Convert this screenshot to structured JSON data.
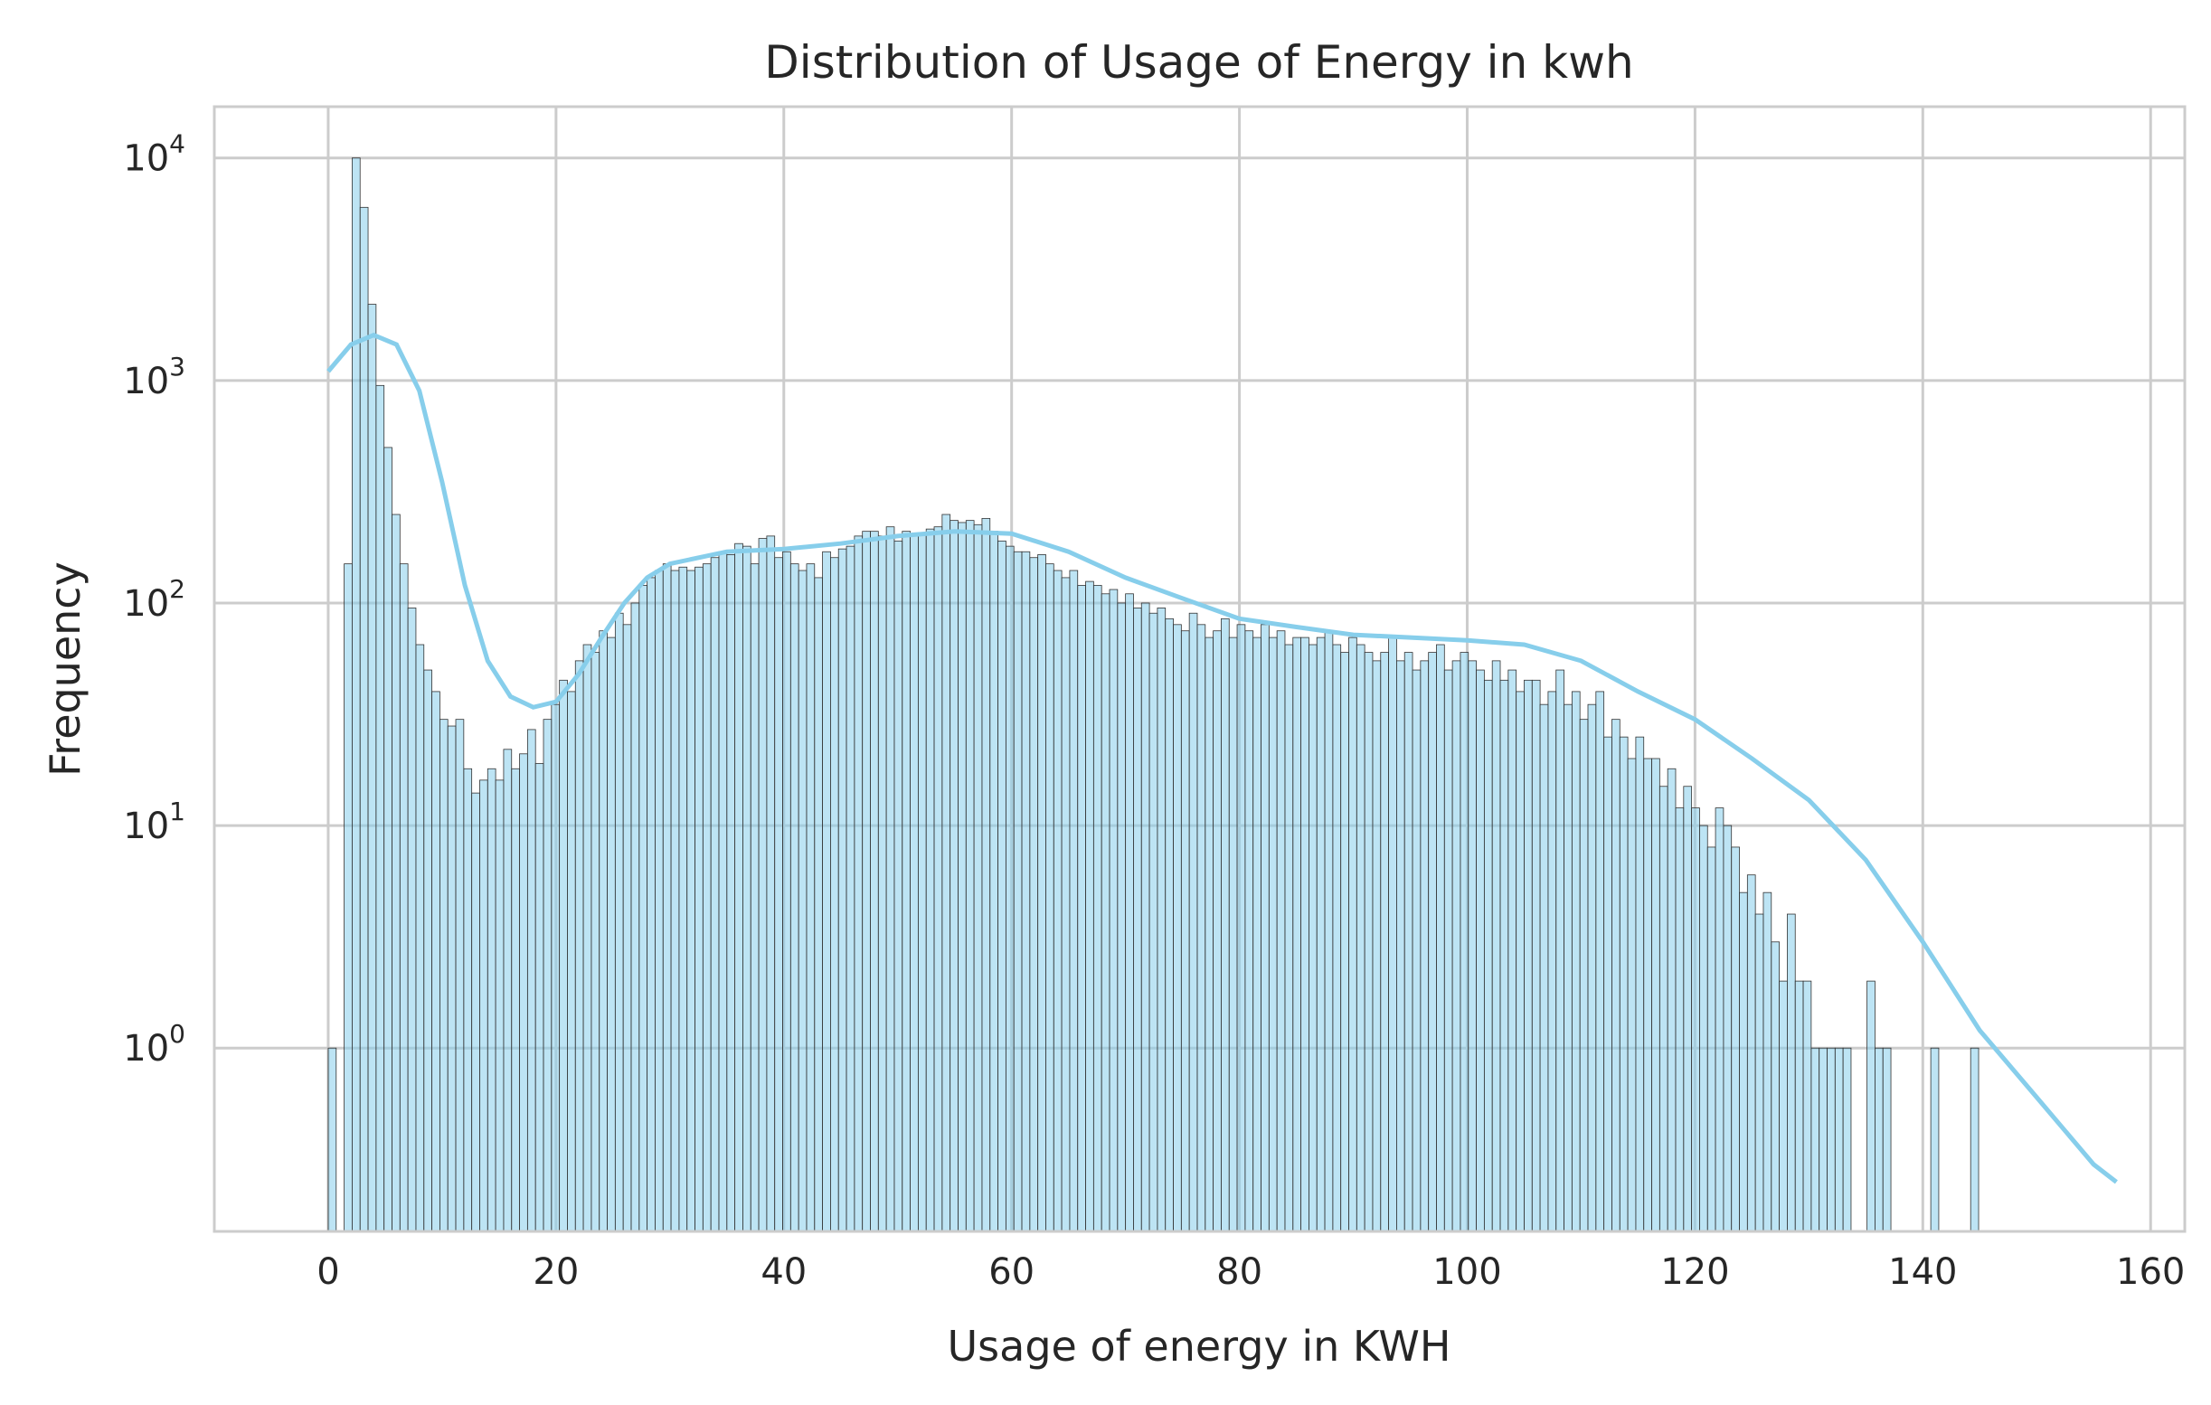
{
  "chart_data": {
    "type": "bar",
    "title": "Distribution of Usage of Energy in kwh",
    "xlabel": "Usage of energy in KWH",
    "ylabel": "Frequency",
    "y_scale": "log",
    "grid": true,
    "legend": "none",
    "xlim": [
      -10,
      163
    ],
    "ylim": [
      0.15,
      17000
    ],
    "x_ticks": [
      0,
      20,
      40,
      60,
      80,
      100,
      120,
      140,
      160
    ],
    "y_ticks": [
      {
        "base": "10",
        "exp": "0",
        "value": 1
      },
      {
        "base": "10",
        "exp": "1",
        "value": 10
      },
      {
        "base": "10",
        "exp": "2",
        "value": 100
      },
      {
        "base": "10",
        "exp": "3",
        "value": 1000
      },
      {
        "base": "10",
        "exp": "4",
        "value": 10000
      }
    ],
    "bar_color": "#87CEEB",
    "bar_edge_color": "#333333",
    "kde_color": "#87CEEB",
    "bin_start": 0,
    "bin_width": 0.7,
    "counts": [
      1,
      0,
      150,
      10000,
      6000,
      2200,
      950,
      500,
      250,
      150,
      95,
      65,
      50,
      40,
      30,
      28,
      30,
      18,
      14,
      16,
      18,
      16,
      22,
      18,
      21,
      27,
      19,
      30,
      35,
      45,
      40,
      55,
      65,
      60,
      75,
      70,
      90,
      80,
      100,
      120,
      130,
      140,
      150,
      140,
      145,
      140,
      145,
      150,
      160,
      170,
      165,
      185,
      180,
      150,
      195,
      200,
      160,
      170,
      150,
      140,
      150,
      130,
      170,
      160,
      175,
      180,
      200,
      210,
      210,
      200,
      220,
      190,
      210,
      200,
      205,
      215,
      220,
      250,
      235,
      230,
      235,
      225,
      240,
      210,
      190,
      180,
      170,
      170,
      160,
      165,
      150,
      140,
      130,
      140,
      120,
      125,
      120,
      110,
      115,
      100,
      110,
      95,
      100,
      90,
      95,
      85,
      80,
      75,
      90,
      80,
      70,
      75,
      85,
      70,
      80,
      75,
      70,
      80,
      70,
      75,
      65,
      70,
      70,
      65,
      70,
      75,
      65,
      60,
      70,
      65,
      60,
      55,
      60,
      70,
      55,
      60,
      50,
      55,
      60,
      65,
      50,
      55,
      60,
      55,
      50,
      45,
      55,
      45,
      50,
      40,
      45,
      45,
      35,
      40,
      50,
      35,
      40,
      30,
      35,
      40,
      25,
      30,
      25,
      20,
      25,
      20,
      20,
      15,
      18,
      12,
      15,
      12,
      10,
      8,
      12,
      10,
      8,
      5,
      6,
      4,
      5,
      3,
      2,
      4,
      2,
      2,
      1,
      1,
      1,
      1,
      1,
      0,
      0,
      2,
      1,
      1,
      0,
      0,
      0,
      0,
      0,
      1,
      0,
      0,
      0,
      0,
      1
    ],
    "kde": [
      [
        0,
        1100
      ],
      [
        2,
        1450
      ],
      [
        4,
        1600
      ],
      [
        6,
        1450
      ],
      [
        8,
        900
      ],
      [
        10,
        350
      ],
      [
        12,
        120
      ],
      [
        14,
        55
      ],
      [
        16,
        38
      ],
      [
        18,
        34
      ],
      [
        20,
        36
      ],
      [
        22,
        48
      ],
      [
        24,
        70
      ],
      [
        26,
        100
      ],
      [
        28,
        130
      ],
      [
        30,
        150
      ],
      [
        35,
        170
      ],
      [
        40,
        175
      ],
      [
        45,
        185
      ],
      [
        50,
        200
      ],
      [
        55,
        210
      ],
      [
        60,
        205
      ],
      [
        65,
        170
      ],
      [
        70,
        130
      ],
      [
        75,
        105
      ],
      [
        80,
        85
      ],
      [
        85,
        78
      ],
      [
        90,
        72
      ],
      [
        95,
        70
      ],
      [
        100,
        68
      ],
      [
        105,
        65
      ],
      [
        110,
        55
      ],
      [
        115,
        40
      ],
      [
        120,
        30
      ],
      [
        125,
        20
      ],
      [
        130,
        13
      ],
      [
        135,
        7
      ],
      [
        140,
        3
      ],
      [
        145,
        1.2
      ],
      [
        150,
        0.6
      ],
      [
        155,
        0.3
      ],
      [
        157,
        0.25
      ]
    ]
  }
}
